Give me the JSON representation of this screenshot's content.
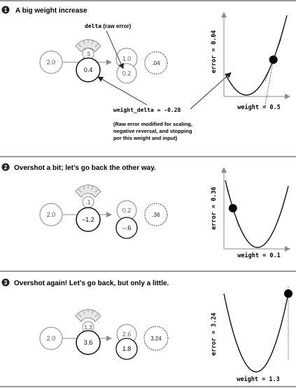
{
  "panels": [
    {
      "number": "1",
      "title": "A big weight increase",
      "input": "2.0",
      "weight_small": ".5",
      "weight": "0.4",
      "goal": "1.0",
      "prediction": "0.2",
      "error": ".04",
      "delta_label_code": "delta",
      "delta_label_text": " (raw error)",
      "weight_delta_label": "weight_delta = -0.28",
      "note_lines": [
        "(Raw error modified for scaling,",
        "negative reversal, and stopping",
        "per this weight and input)"
      ],
      "y_axis_label": "error = 0.04",
      "x_axis_label": "weight = 0.5",
      "ball_position": {
        "weight_fraction": 0.78
      }
    },
    {
      "number": "2",
      "title": "Overshot a bit; let’s go back the other way.",
      "input": "2.0",
      "weight_small": ".1",
      "weight": "–1.2",
      "goal": "0.2",
      "prediction": "–.6",
      "error": ".36",
      "y_axis_label": "error = 0.36",
      "x_axis_label": "weight = 0.1",
      "ball_position": {
        "weight_fraction": 0.12
      }
    },
    {
      "number": "3",
      "title": "Overshot again! Let’s go back, but only a  little.",
      "input": "2.0",
      "weight_small": "1.3",
      "weight": "3.6",
      "goal": "2.6",
      "prediction": "1.8",
      "error": "3.24",
      "y_axis_label": "error = 3.24",
      "x_axis_label": "weight = 1.3",
      "ball_position": {
        "weight_fraction": 1.0
      }
    }
  ]
}
